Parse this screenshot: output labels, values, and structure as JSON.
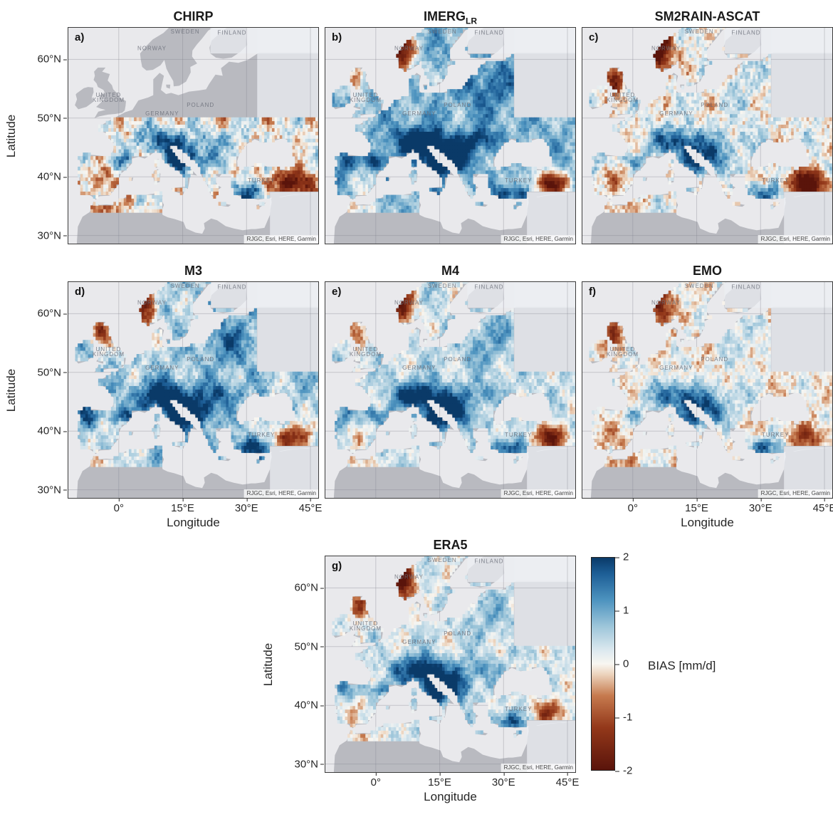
{
  "figure": {
    "axes": {
      "xlabel": "Longitude",
      "ylabel": "Latitude",
      "xticks": [
        {
          "label": "0°",
          "lon": 0
        },
        {
          "label": "15°E",
          "lon": 15
        },
        {
          "label": "30°E",
          "lon": 30
        },
        {
          "label": "45°E",
          "lon": 45
        }
      ],
      "yticks": [
        {
          "label": "60°N",
          "lat": 60
        },
        {
          "label": "50°N",
          "lat": 50
        },
        {
          "label": "40°N",
          "lat": 40
        },
        {
          "label": "30°N",
          "lat": 30
        }
      ],
      "lon_range": [
        -12,
        47
      ],
      "lat_range": [
        28.5,
        65.5
      ]
    },
    "attribution": "RJGC, Esri, HERE, Garmin",
    "colorbar": {
      "label": "BIAS [mm/d]",
      "ticks": [
        {
          "label": "2",
          "v": 2
        },
        {
          "label": "1",
          "v": 1
        },
        {
          "label": "0",
          "v": 0
        },
        {
          "label": "-1",
          "v": -1
        },
        {
          "label": "-2",
          "v": -2
        }
      ]
    },
    "colormap": [
      {
        "v": -2.0,
        "c": "#5a140b"
      },
      {
        "v": -1.2,
        "c": "#93381a"
      },
      {
        "v": -0.6,
        "c": "#c67a4e"
      },
      {
        "v": -0.2,
        "c": "#ecd3bc"
      },
      {
        "v": 0.0,
        "c": "#f8f6f1"
      },
      {
        "v": 0.25,
        "c": "#dde9ef"
      },
      {
        "v": 0.7,
        "c": "#9ec6da"
      },
      {
        "v": 1.2,
        "c": "#4d93bf"
      },
      {
        "v": 1.7,
        "c": "#1d5e96"
      },
      {
        "v": 2.0,
        "c": "#0a3a68"
      }
    ],
    "map_colors": {
      "sea": "#e9e9ec",
      "land": "#b9bac0",
      "nodata": "rgba(236,238,242,0.72)",
      "graticule": "rgba(128,130,140,0.35)",
      "country_label": "rgba(108,112,122,0.85)",
      "attribution_text": "#444444",
      "attribution_bg": "rgba(255,255,255,0.75)"
    },
    "country_labels": [
      {
        "text": "NORWAY",
        "lon": 7.8,
        "lat": 61.8
      },
      {
        "text": "SWEDEN",
        "lon": 15.6,
        "lat": 64.7
      },
      {
        "text": "FINLAND",
        "lon": 26.6,
        "lat": 64.5
      },
      {
        "text": "UNITED",
        "lon": -2.4,
        "lat": 53.9
      },
      {
        "text": "KINGDOM",
        "lon": -2.4,
        "lat": 53.0
      },
      {
        "text": "GERMANY",
        "lon": 10.2,
        "lat": 50.7
      },
      {
        "text": "POLAND",
        "lon": 19.2,
        "lat": 52.2
      },
      {
        "text": "TURKEY",
        "lon": 33.5,
        "lat": 39.3
      }
    ],
    "nodata_regions": [
      {
        "lon": [
          21.5,
          47.8
        ],
        "lat": [
          61.0,
          65.5
        ]
      },
      {
        "lon": [
          32.5,
          47.8
        ],
        "lat": [
          50.0,
          65.5
        ]
      },
      {
        "lon": [
          35.5,
          47.8
        ],
        "lat": [
          28.5,
          37.4
        ]
      }
    ],
    "feature_defs": {
      "alps": {
        "lon": 10.5,
        "lat": 46.0,
        "sx": 4.5,
        "sy": 1.7
      },
      "apennines": {
        "lon": 13.5,
        "lat": 42.3,
        "sx": 1.8,
        "sy": 2.2
      },
      "balkan": {
        "lon": 18.5,
        "lat": 43.2,
        "sx": 2.8,
        "sy": 1.8
      },
      "pyrenees": {
        "lon": 0.5,
        "lat": 42.7,
        "sx": 2.2,
        "sy": 0.9
      },
      "carpathians": {
        "lon": 24.5,
        "lat": 46.3,
        "sx": 3.0,
        "sy": 1.4
      },
      "galicia": {
        "lon": -7.5,
        "lat": 42.8,
        "sx": 1.6,
        "sy": 1.4
      },
      "spain_red": {
        "lon": -3.8,
        "lat": 39.3,
        "sx": 2.6,
        "sy": 1.6
      },
      "norway_coast": {
        "lon": 6.2,
        "lat": 61.5,
        "sx": 2.0,
        "sy": 2.8
      },
      "scotland": {
        "lon": -4.3,
        "lat": 56.8,
        "sx": 1.6,
        "sy": 1.8
      },
      "east_turkey": {
        "lon": 41.0,
        "lat": 38.9,
        "sx": 3.2,
        "sy": 1.5
      },
      "taurus": {
        "lon": 31.0,
        "lat": 37.2,
        "sx": 3.0,
        "sy": 1.1
      },
      "baltic": {
        "lon": 26.0,
        "lat": 55.5,
        "sx": 4.5,
        "sy": 3.2
      },
      "atlas": {
        "lon": -4.0,
        "lat": 34.8,
        "sx": 3.0,
        "sy": 1.0
      }
    },
    "panels": [
      {
        "letter": "a)",
        "title": "CHIRP",
        "title_sub": "",
        "show_yticks": true,
        "show_xticks": false,
        "field": {
          "seed": 3.1,
          "base": 0.05,
          "noise": [
            0.5,
            0.42,
            0.38
          ],
          "lat_max_data": 50.3,
          "features": {
            "alps": 1.6,
            "apennines": 1.5,
            "balkan": 1.6,
            "pyrenees": 1.0,
            "carpathians": 0.8,
            "galicia": 0.4,
            "spain_red": -0.8,
            "norway_coast": 0,
            "scotland": 0,
            "east_turkey": -2.4,
            "taurus": 1.4,
            "baltic": 0,
            "atlas": -1.0
          }
        }
      },
      {
        "letter": "b)",
        "title": "IMERG",
        "title_sub": "LR",
        "show_yticks": false,
        "show_xticks": false,
        "field": {
          "seed": 7.4,
          "base": 0.85,
          "noise": [
            0.42,
            0.32,
            0.26
          ],
          "features": {
            "alps": 1.9,
            "apennines": 1.6,
            "balkan": 1.8,
            "pyrenees": 1.2,
            "carpathians": 1.2,
            "galicia": 1.2,
            "spain_red": -0.4,
            "norway_coast": -2.8,
            "scotland": -1.8,
            "east_turkey": -2.6,
            "taurus": 1.2,
            "baltic": 0.7,
            "atlas": -1.1
          }
        }
      },
      {
        "letter": "c)",
        "title": "SM2RAIN-ASCAT",
        "title_sub": "",
        "show_yticks": false,
        "show_xticks": false,
        "field": {
          "seed": 12.9,
          "base": 0.12,
          "noise": [
            0.38,
            0.36,
            0.34
          ],
          "features": {
            "alps": 1.7,
            "apennines": 1.4,
            "balkan": 1.7,
            "pyrenees": 0.9,
            "carpathians": 0.5,
            "galicia": 0.5,
            "spain_red": -0.6,
            "norway_coast": -2.8,
            "scotland": -2.0,
            "east_turkey": -2.8,
            "taurus": 1.5,
            "baltic": 0.25,
            "atlas": -0.7
          }
        }
      },
      {
        "letter": "d)",
        "title": "M3",
        "title_sub": "",
        "show_yticks": true,
        "show_xticks": true,
        "field": {
          "seed": 21.3,
          "base": 0.6,
          "noise": [
            0.46,
            0.34,
            0.3
          ],
          "features": {
            "alps": 2.0,
            "apennines": 1.7,
            "balkan": 1.9,
            "pyrenees": 1.2,
            "carpathians": 1.0,
            "galicia": 1.1,
            "spain_red": -0.3,
            "norway_coast": -2.4,
            "scotland": -1.9,
            "east_turkey": -2.2,
            "taurus": 1.5,
            "baltic": 0.8,
            "atlas": -0.9
          }
        }
      },
      {
        "letter": "e)",
        "title": "M4",
        "title_sub": "",
        "show_yticks": false,
        "show_xticks": false,
        "field": {
          "seed": 29.7,
          "base": 0.4,
          "noise": [
            0.4,
            0.3,
            0.26
          ],
          "features": {
            "alps": 2.0,
            "apennines": 1.7,
            "balkan": 1.8,
            "pyrenees": 1.1,
            "carpathians": 0.8,
            "galicia": 0.9,
            "spain_red": -0.3,
            "norway_coast": -2.1,
            "scotland": -1.6,
            "east_turkey": -2.0,
            "taurus": 1.5,
            "baltic": 0.6,
            "atlas": -0.7
          }
        }
      },
      {
        "letter": "f)",
        "title": "EMO",
        "title_sub": "",
        "show_yticks": false,
        "show_xticks": true,
        "field": {
          "seed": 35.2,
          "base": 0.02,
          "noise": [
            0.3,
            0.3,
            0.3
          ],
          "features": {
            "alps": 1.7,
            "apennines": 1.5,
            "balkan": 1.6,
            "pyrenees": 0.8,
            "carpathians": 0.5,
            "galicia": 0.2,
            "spain_red": -0.5,
            "norway_coast": -1.8,
            "scotland": -1.4,
            "east_turkey": -1.2,
            "taurus": 1.6,
            "baltic": 0.35,
            "atlas": -0.5
          }
        }
      },
      {
        "letter": "g)",
        "title": "ERA5",
        "title_sub": "",
        "show_yticks": true,
        "show_xticks": true,
        "field": {
          "seed": 44.8,
          "base": 0.3,
          "noise": [
            0.36,
            0.3,
            0.26
          ],
          "features": {
            "alps": 2.1,
            "apennines": 1.7,
            "balkan": 1.8,
            "pyrenees": 1.1,
            "carpathians": 0.8,
            "galicia": 0.9,
            "spain_red": -0.35,
            "norway_coast": -2.6,
            "scotland": -1.8,
            "east_turkey": -1.3,
            "taurus": 1.4,
            "baltic": 0.45,
            "atlas": -0.6
          }
        }
      }
    ]
  },
  "chart_data": {
    "type": "heatmap",
    "subtype": "multi-panel geographic bias maps over Europe",
    "variable": "BIAS [mm/d]",
    "colorbar": {
      "label": "BIAS [mm/d]",
      "min": -2,
      "max": 2,
      "ticks": [
        2,
        1,
        0,
        -1,
        -2
      ]
    },
    "x": {
      "label": "Longitude",
      "ticks": [
        "0°",
        "15°E",
        "30°E",
        "45°E"
      ],
      "range_deg": [
        -12,
        47
      ]
    },
    "y": {
      "label": "Latitude",
      "ticks": [
        "60°N",
        "50°N",
        "40°N",
        "30°N"
      ],
      "range_deg": [
        28.5,
        65.5
      ]
    },
    "basemap_attribution": "RJGC, Esri, HERE, Garmin",
    "panels": [
      {
        "label": "a)",
        "product": "CHIRP",
        "approx_mean_bias_mmd": 0.1,
        "pattern": "coverage only south of ~50°N; mixed weak bias, wet (blue) over Alps, Dinarides and western Turkey, strong dry (dark brown) spot over eastern Turkey, dry strip on NW Africa coast"
      },
      {
        "label": "b)",
        "product": "IMERG_LR",
        "approx_mean_bias_mmd": 0.9,
        "pattern": "widespread wet (blue) bias across nearly all of Europe; strong dry (brown) bias along Norwegian coast, Scotland and southeastern Turkey"
      },
      {
        "label": "c)",
        "product": "SM2RAIN-ASCAT",
        "approx_mean_bias_mmd": 0.1,
        "pattern": "near-neutral overall; wet bias over mountain ranges (Alps, Dinarides, Taurus), strong dry bias on Norwegian coast, Scotland and eastern Turkey; no data over eastern domain"
      },
      {
        "label": "d)",
        "product": "M3",
        "approx_mean_bias_mmd": 0.6,
        "pattern": "broad moderate wet bias; dark blue over Alps, Apennines and Dinarides; dry spots over Norwegian coast, Scotland and eastern Turkey"
      },
      {
        "label": "e)",
        "product": "M4",
        "approx_mean_bias_mmd": 0.4,
        "pattern": "light wet bias over most land; strong wet bias over Alps and Dinarides; dry spots over Norway, Scotland and eastern Turkey"
      },
      {
        "label": "f)",
        "product": "EMO",
        "approx_mean_bias_mmd": 0.0,
        "pattern": "mostly near-zero bias (pale); wet bias confined to Alps, Apennines, Dinarides and Turkish coast; scattered weak dry patches"
      },
      {
        "label": "g)",
        "product": "ERA5",
        "approx_mean_bias_mmd": 0.3,
        "pattern": "light wet bias; pronounced wet bias over Alps and Dinarides; strong dry bias along Norwegian coast and Scotland"
      }
    ],
    "layout": "3x2 grid of panels plus centered bottom panel; shared vertical diverging colorbar (dark blue +2 to dark red-brown -2) at bottom right"
  }
}
